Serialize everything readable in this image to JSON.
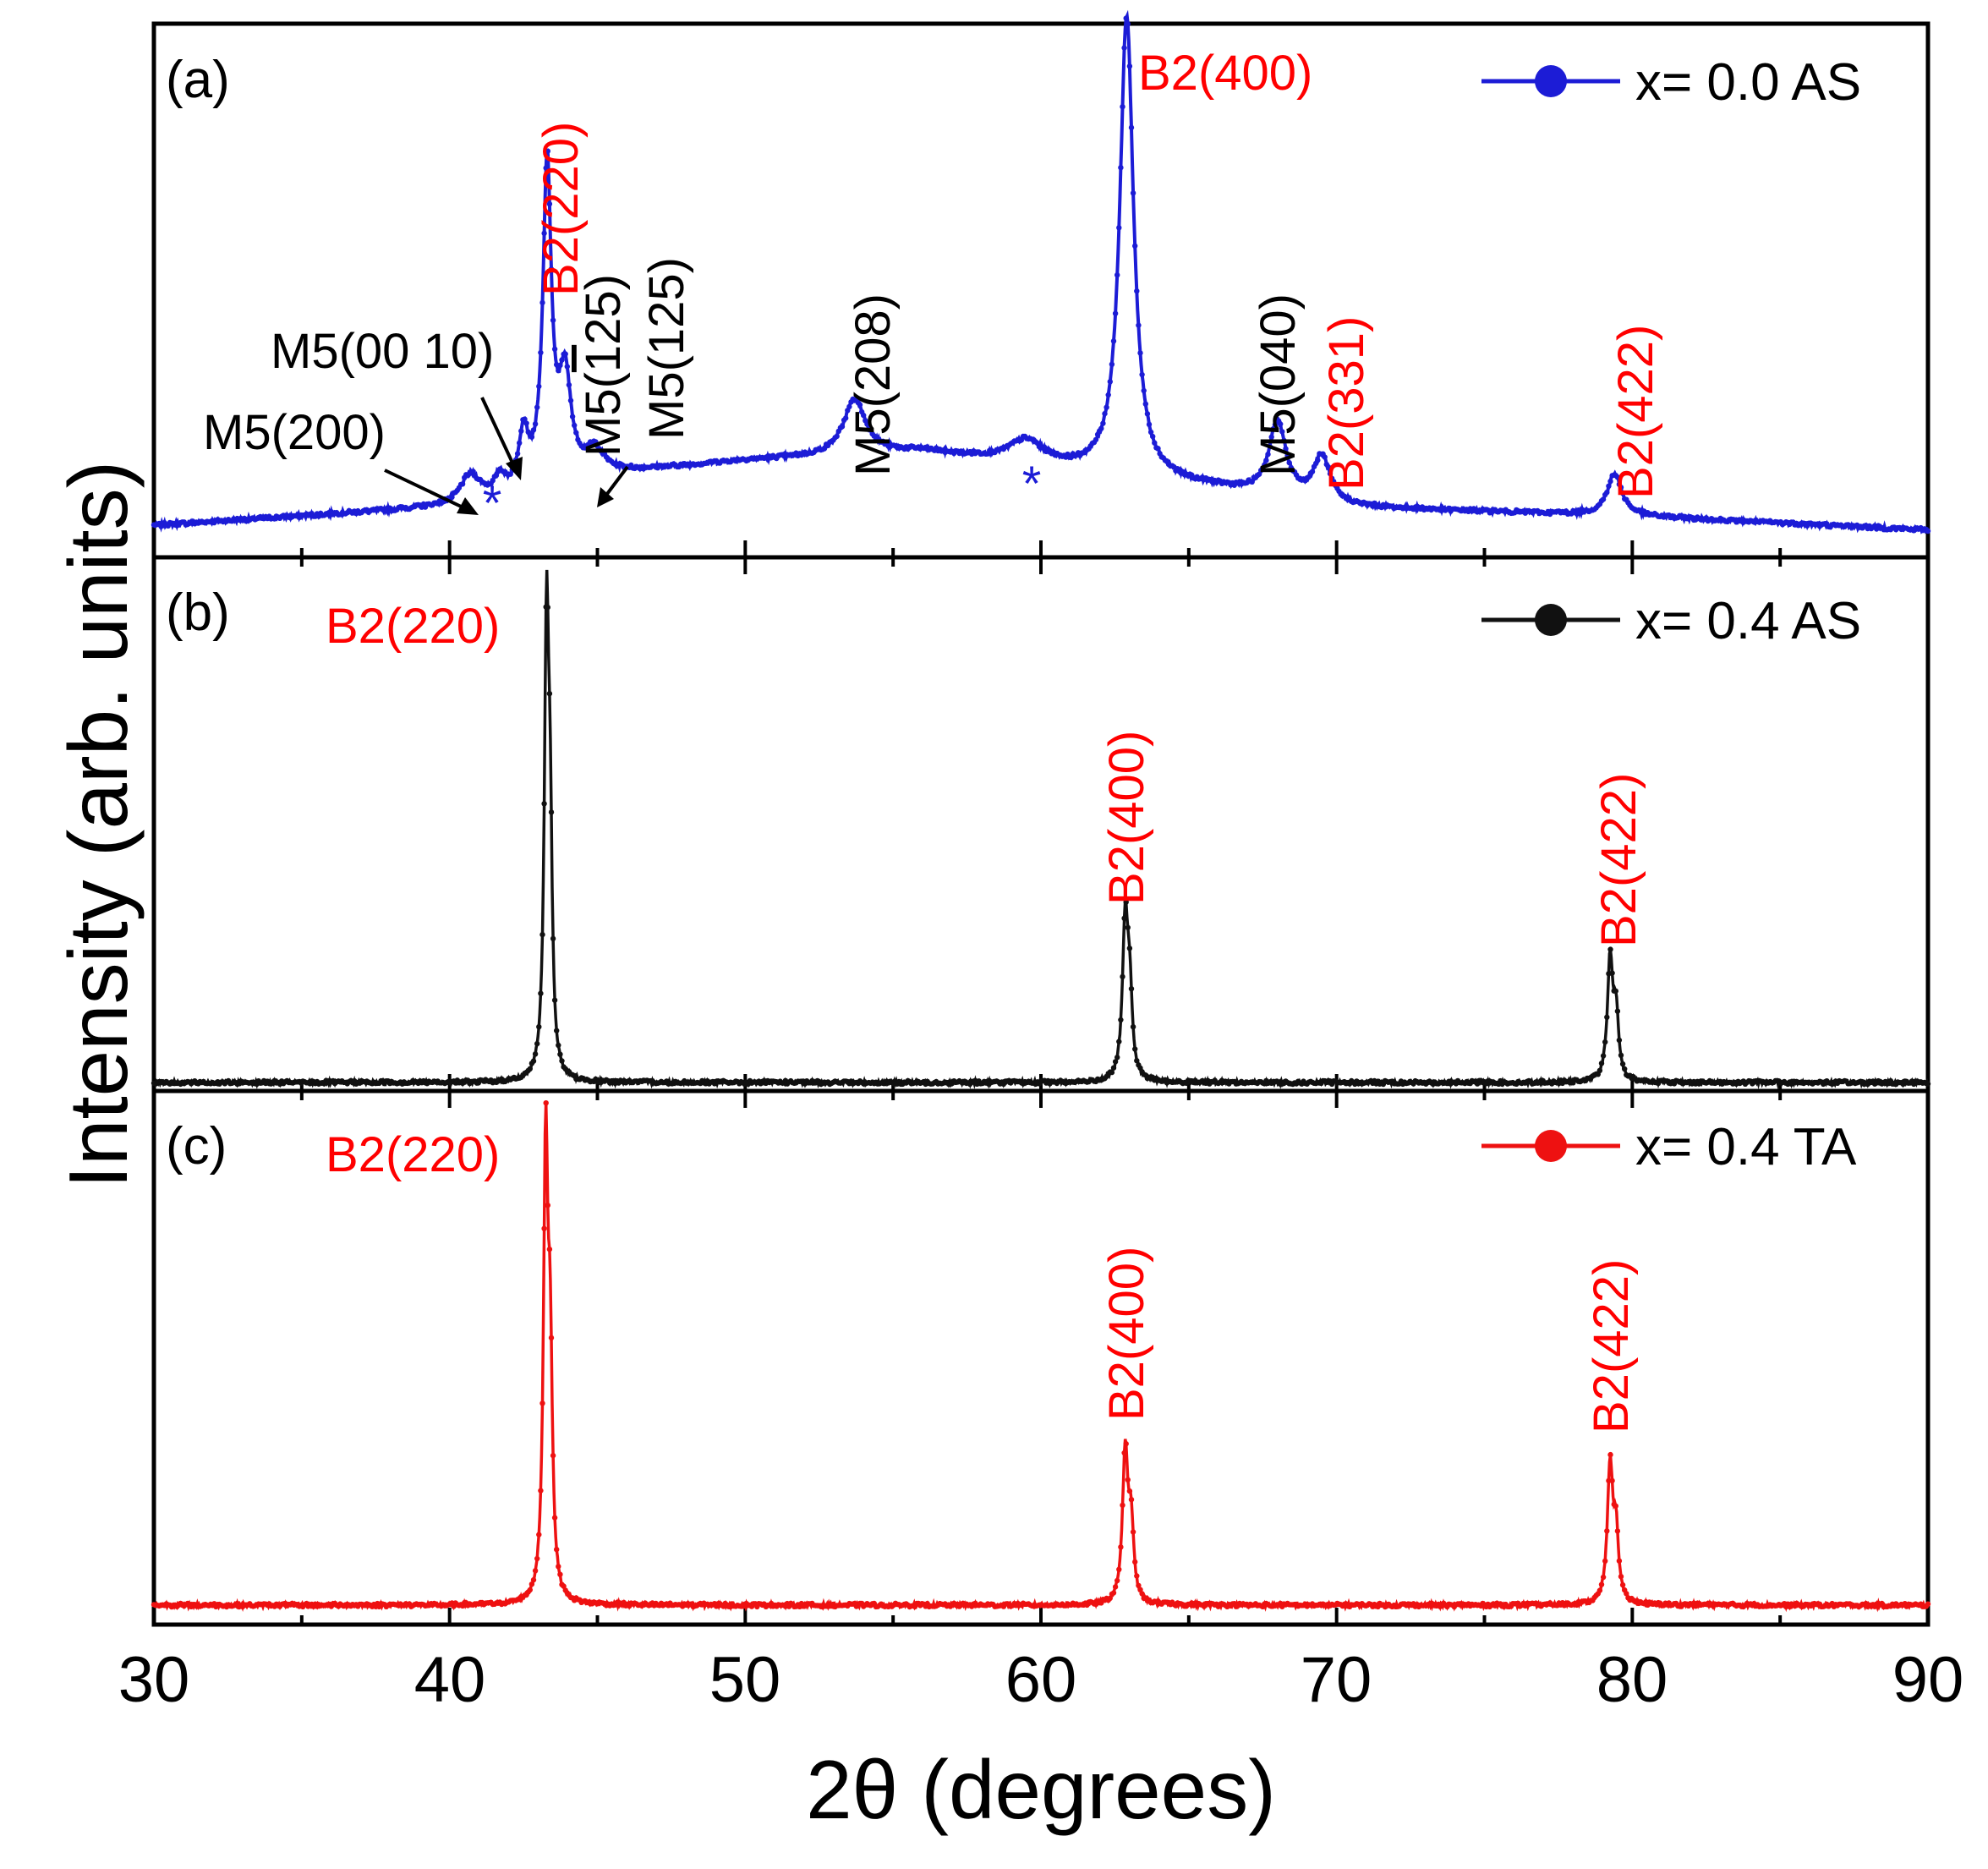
{
  "chart_data": {
    "type": "line",
    "x_range": [
      30,
      90
    ],
    "x_ticks": [
      "30",
      "40",
      "50",
      "60",
      "70",
      "80",
      "90"
    ],
    "xlabel": "2θ (degrees)",
    "ylabel": "Intensity (arb. units)",
    "panels": [
      {
        "id": "a",
        "label": "(a)",
        "legend": "x= 0.0 AS",
        "color": "#1c1cd6",
        "baseline": [
          [
            30,
            0.06
          ],
          [
            40,
            0.1
          ],
          [
            42,
            0.12
          ],
          [
            45,
            0.17
          ],
          [
            50,
            0.2
          ],
          [
            56,
            0.22
          ],
          [
            61,
            0.18
          ],
          [
            66,
            0.14
          ],
          [
            70,
            0.1
          ],
          [
            80,
            0.08
          ],
          [
            90,
            0.05
          ]
        ],
        "peaks": [
          {
            "x": 40.7,
            "h": 0.06,
            "w": 0.4
          },
          {
            "x": 41.7,
            "h": 0.04,
            "w": 0.2
          },
          {
            "x": 42.5,
            "h": 0.12,
            "w": 0.2
          },
          {
            "x": 43.3,
            "h": 0.69,
            "w": 0.17
          },
          {
            "x": 43.9,
            "h": 0.22,
            "w": 0.25
          },
          {
            "x": 44.9,
            "h": 0.05,
            "w": 0.35
          },
          {
            "x": 53.7,
            "h": 0.12,
            "w": 0.45
          },
          {
            "x": 59.5,
            "h": 0.05,
            "w": 0.7
          },
          {
            "x": 62.9,
            "h": 1.0,
            "w": 0.28
          },
          {
            "x": 68.0,
            "h": 0.16,
            "w": 0.35
          },
          {
            "x": 69.5,
            "h": 0.1,
            "w": 0.35
          },
          {
            "x": 79.4,
            "h": 0.09,
            "w": 0.3
          }
        ],
        "annotations": [
          {
            "text": "B2(220)",
            "x": 43.3,
            "rot": true,
            "color": "#ff0000"
          },
          {
            "text": "B2(400)",
            "x": 62.9,
            "rot": false,
            "color": "#ff0000"
          },
          {
            "text": "M5(125)",
            "x": 45.1,
            "rot": true,
            "color": "#000000"
          },
          {
            "text": "M5(208)",
            "x": 53.7,
            "rot": true,
            "color": "#000000"
          },
          {
            "text": "M5(040)",
            "x": 67.9,
            "rot": true,
            "color": "#000000"
          },
          {
            "text": "B2(331)",
            "x": 69.7,
            "rot": true,
            "color": "#ff0000"
          },
          {
            "text": "B2(422)",
            "x": 79.4,
            "rot": true,
            "color": "#ff0000"
          },
          {
            "text": "M5(200)",
            "x": 37.0,
            "rot": false,
            "color": "#000000"
          },
          {
            "text": "M5(00 10)",
            "x": 41.0,
            "rot": false,
            "color": "#000000"
          },
          {
            "text": "*",
            "x": 41.8,
            "rot": false,
            "color": "#1c1cd6"
          },
          {
            "text": "*",
            "x": 59.6,
            "rot": false,
            "color": "#1c1cd6"
          }
        ],
        "special_label": {
          "prefix": "M5(",
          "overlined": "1",
          "suffix": "25)",
          "x": 43.2,
          "color": "#000000"
        }
      },
      {
        "id": "b",
        "label": "(b)",
        "legend": "x= 0.4 AS",
        "color": "#111111",
        "baseline": [
          [
            30,
            0.0
          ],
          [
            90,
            0.0
          ]
        ],
        "peaks": [
          {
            "x": 43.28,
            "h": 1.0,
            "w": 0.09
          },
          {
            "x": 43.4,
            "h": 0.45,
            "w": 0.08
          },
          {
            "x": 62.85,
            "h": 0.35,
            "w": 0.11
          },
          {
            "x": 63.0,
            "h": 0.18,
            "w": 0.1
          },
          {
            "x": 79.25,
            "h": 0.27,
            "w": 0.11
          },
          {
            "x": 79.45,
            "h": 0.14,
            "w": 0.1
          }
        ],
        "annotations": [
          {
            "text": "B2(220)",
            "x": 38.5,
            "rot": false,
            "color": "#ff0000"
          },
          {
            "text": "B2(400)",
            "x": 62.9,
            "rot": true,
            "color": "#ff0000"
          },
          {
            "text": "B2(422)",
            "x": 79.3,
            "rot": true,
            "color": "#ff0000"
          }
        ]
      },
      {
        "id": "c",
        "label": "(c)",
        "legend": "x= 0.4 TA",
        "color": "#ee1111",
        "baseline": [
          [
            30,
            0.0
          ],
          [
            90,
            0.0
          ]
        ],
        "peaks": [
          {
            "x": 43.25,
            "h": 1.0,
            "w": 0.09
          },
          {
            "x": 43.4,
            "h": 0.5,
            "w": 0.09
          },
          {
            "x": 62.85,
            "h": 0.34,
            "w": 0.11
          },
          {
            "x": 63.05,
            "h": 0.17,
            "w": 0.1
          },
          {
            "x": 79.25,
            "h": 0.31,
            "w": 0.11
          },
          {
            "x": 79.45,
            "h": 0.15,
            "w": 0.1
          }
        ],
        "annotations": [
          {
            "text": "B2(220)",
            "x": 38.5,
            "rot": false,
            "color": "#ff0000"
          },
          {
            "text": "B2(400)",
            "x": 62.9,
            "rot": true,
            "color": "#ff0000"
          },
          {
            "text": "B2(422)",
            "x": 79.2,
            "rot": true,
            "color": "#ff0000"
          }
        ]
      }
    ]
  }
}
